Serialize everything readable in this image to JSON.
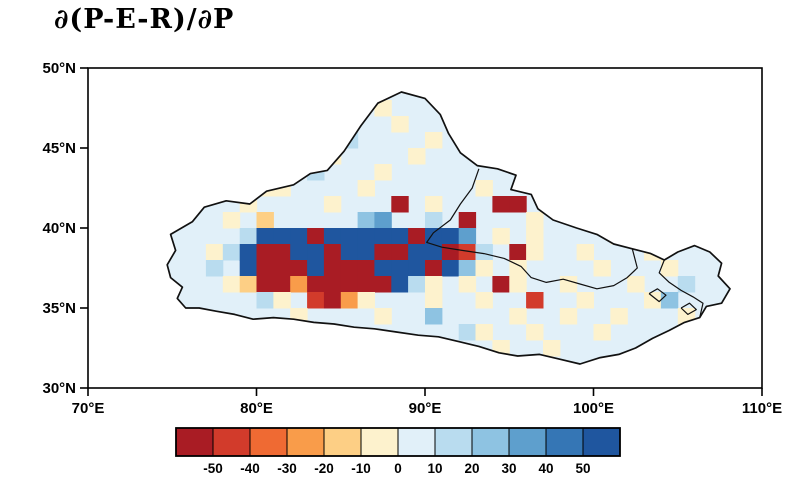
{
  "title": "∂(P-E-R)/∂P",
  "axes": {
    "x": {
      "labels": [
        "70°E",
        "80°E",
        "90°E",
        "100°E",
        "110°E"
      ],
      "values": [
        70,
        80,
        90,
        100,
        110
      ],
      "range": [
        70,
        110
      ]
    },
    "y": {
      "labels": [
        "30°N",
        "35°N",
        "40°N",
        "45°N",
        "50°N"
      ],
      "values": [
        30,
        35,
        40,
        45,
        50
      ],
      "range": [
        30,
        50
      ]
    }
  },
  "colorbar": {
    "tick_labels": [
      "-50",
      "-40",
      "-30",
      "-20",
      "-10",
      "0",
      "10",
      "20",
      "30",
      "40",
      "50"
    ],
    "colors": [
      "#a91c24",
      "#d23b2b",
      "#ef6a33",
      "#f99c4a",
      "#fdcf85",
      "#fdf2cd",
      "#e1f0f9",
      "#b9dcef",
      "#8ec3e2",
      "#5e9fcd",
      "#3576b5",
      "#1f569f"
    ]
  },
  "chart_data": {
    "type": "heatmap",
    "title": "∂(P-E-R)/∂P",
    "lon_range_deg_e": [
      70,
      110
    ],
    "lat_range_deg_n": [
      30,
      50
    ],
    "levels": [
      -50,
      -40,
      -30,
      -20,
      -10,
      0,
      10,
      20,
      30,
      40,
      50
    ],
    "palette": {
      "0": "#fdf2cd",
      "1": "#e1f0f9",
      "2": "#b9dcef",
      "3": "#8ec3e2",
      "4": "#5e9fcd",
      "5": "#3576b5",
      "6": "#1f569f",
      "a": "#fdcf85",
      "c": "#f99c4a",
      "d": "#ef6a33",
      "e": "#d23b2b",
      "f": "#a91c24"
    },
    "grid": {
      "lon_west": 74,
      "lat_north": 49,
      "cell_deg": 1,
      "rows": [
        "1111111111111111111111111111111111",
        "1111111111111011111111111111111111",
        "1111111111111101111111111111111111",
        "1111111111121111011111111111111111",
        "1111111111011110111111111111111111",
        "1111111112111011111111111111111111",
        "1111110011110111111011111111111111",
        "11111011110111f10111ff111101111111",
        "111101a11111341121f111011101111111",
        "111112666f66666f664101011110111111",
        "111026ff66f66ff66fe21f011011101111",
        "111216fff6fff666f63010111101110111",
        "11110affcfffff620101f0110111011211",
        "111111201efc0111011011e11011103111",
        "1111111101111011311110110110111011",
        "1111111111111111112011011101111111",
        "1111111111111111111101101111111111",
        "1111111111111111111111111111111111"
      ]
    },
    "region_outline_lonlat": [
      [
        74.7,
        37.7
      ],
      [
        75.2,
        38.6
      ],
      [
        74.9,
        39.6
      ],
      [
        76.2,
        40.4
      ],
      [
        76.9,
        41.3
      ],
      [
        78.2,
        41.7
      ],
      [
        79.6,
        41.5
      ],
      [
        80.6,
        42.3
      ],
      [
        82.2,
        42.7
      ],
      [
        83.2,
        43.4
      ],
      [
        84.2,
        43.6
      ],
      [
        85.2,
        44.8
      ],
      [
        86.2,
        46.4
      ],
      [
        87.2,
        47.8
      ],
      [
        88.6,
        48.5
      ],
      [
        90.0,
        48.1
      ],
      [
        90.9,
        47.1
      ],
      [
        91.4,
        45.9
      ],
      [
        92.1,
        44.7
      ],
      [
        93.1,
        43.9
      ],
      [
        94.3,
        43.7
      ],
      [
        95.4,
        43.3
      ],
      [
        95.1,
        42.4
      ],
      [
        96.3,
        42.1
      ],
      [
        96.7,
        41.2
      ],
      [
        97.6,
        40.5
      ],
      [
        99.0,
        40.0
      ],
      [
        100.2,
        39.6
      ],
      [
        101.2,
        39.0
      ],
      [
        102.3,
        38.7
      ],
      [
        103.4,
        38.4
      ],
      [
        104.2,
        38.0
      ],
      [
        105.0,
        38.5
      ],
      [
        106.0,
        38.9
      ],
      [
        106.9,
        38.5
      ],
      [
        107.6,
        37.8
      ],
      [
        107.4,
        37.0
      ],
      [
        108.1,
        36.2
      ],
      [
        107.6,
        35.3
      ],
      [
        106.7,
        35.1
      ],
      [
        106.3,
        34.4
      ],
      [
        105.4,
        34.1
      ],
      [
        104.5,
        33.6
      ],
      [
        103.5,
        33.1
      ],
      [
        102.5,
        32.5
      ],
      [
        101.5,
        32.1
      ],
      [
        100.4,
        31.9
      ],
      [
        99.2,
        31.5
      ],
      [
        98.0,
        31.8
      ],
      [
        96.8,
        32.1
      ],
      [
        95.5,
        32.0
      ],
      [
        94.4,
        32.2
      ],
      [
        93.2,
        32.6
      ],
      [
        92.0,
        32.9
      ],
      [
        90.8,
        33.2
      ],
      [
        89.6,
        33.3
      ],
      [
        88.3,
        33.5
      ],
      [
        87.0,
        33.7
      ],
      [
        85.8,
        33.8
      ],
      [
        84.6,
        34.0
      ],
      [
        83.4,
        34.1
      ],
      [
        82.2,
        34.3
      ],
      [
        81.0,
        34.4
      ],
      [
        79.8,
        34.3
      ],
      [
        78.7,
        34.6
      ],
      [
        77.6,
        34.8
      ],
      [
        76.6,
        35.0
      ],
      [
        75.8,
        35.0
      ],
      [
        75.3,
        35.6
      ],
      [
        75.6,
        36.3
      ],
      [
        74.9,
        36.9
      ]
    ],
    "internal_boundaries_lonlat": [
      [
        [
          93.2,
          43.7
        ],
        [
          92.8,
          42.5
        ],
        [
          92.1,
          41.5
        ],
        [
          91.5,
          40.5
        ],
        [
          90.5,
          39.7
        ],
        [
          90.1,
          39.1
        ],
        [
          91.0,
          38.8
        ],
        [
          92.2,
          38.6
        ],
        [
          93.5,
          38.4
        ],
        [
          94.7,
          38.1
        ],
        [
          95.7,
          37.6
        ],
        [
          96.3,
          36.9
        ],
        [
          97.2,
          36.6
        ],
        [
          98.2,
          36.8
        ],
        [
          99.2,
          36.5
        ],
        [
          100.2,
          36.2
        ],
        [
          101.2,
          36.4
        ],
        [
          102.0,
          36.9
        ],
        [
          102.6,
          37.5
        ],
        [
          102.3,
          38.7
        ]
      ],
      [
        [
          104.2,
          38.0
        ],
        [
          103.9,
          37.2
        ],
        [
          104.5,
          36.6
        ],
        [
          105.2,
          36.1
        ],
        [
          105.9,
          35.7
        ],
        [
          106.5,
          35.3
        ],
        [
          106.3,
          34.4
        ]
      ],
      [
        [
          103.3,
          35.9
        ],
        [
          103.8,
          36.2
        ],
        [
          104.3,
          35.8
        ],
        [
          103.9,
          35.4
        ],
        [
          103.3,
          35.9
        ]
      ],
      [
        [
          105.2,
          35.0
        ],
        [
          105.7,
          35.3
        ],
        [
          106.1,
          34.9
        ],
        [
          105.6,
          34.6
        ],
        [
          105.2,
          35.0
        ]
      ]
    ]
  }
}
